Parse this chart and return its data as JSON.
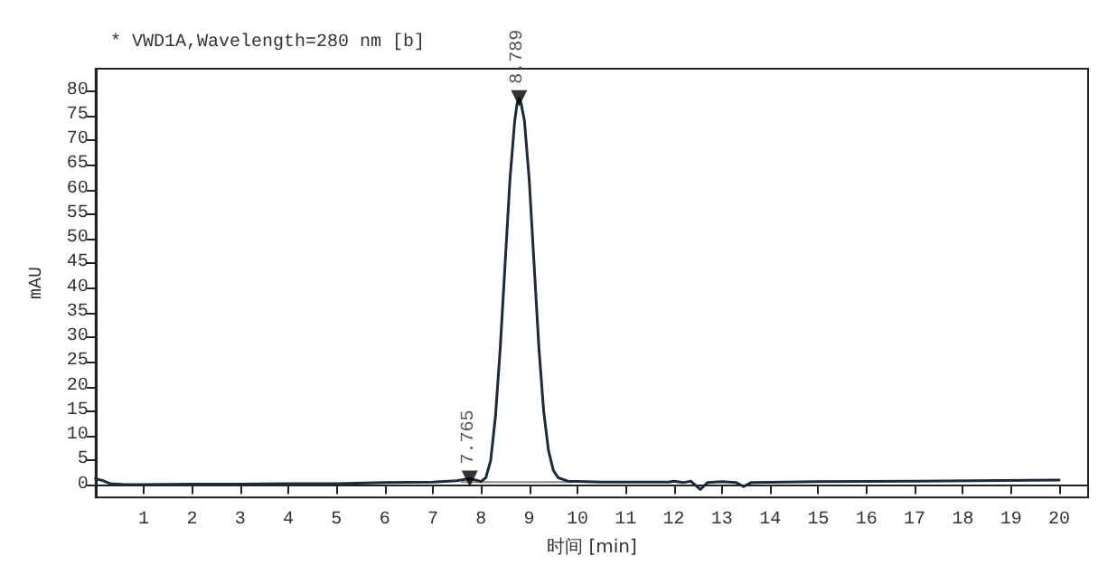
{
  "chart_data": {
    "type": "line",
    "title": "* VWD1A,Wavelength=280 nm [b]",
    "xlabel": "时间 [min]",
    "ylabel": "mAU",
    "xlim": [
      0,
      20.6
    ],
    "xticks": [
      1,
      2,
      3,
      4,
      5,
      6,
      7,
      8,
      9,
      10,
      11,
      12,
      13,
      14,
      15,
      16,
      17,
      18,
      19,
      20
    ],
    "ylim": [
      -2.5,
      84.5
    ],
    "yticks": [
      0,
      5,
      10,
      15,
      20,
      25,
      30,
      35,
      40,
      45,
      50,
      55,
      60,
      65,
      70,
      75,
      80
    ],
    "marker": "none",
    "line_style": "solid",
    "annotations": [
      {
        "text": "7.765",
        "x": 7.765,
        "y": 1.3
      },
      {
        "text": "8.789",
        "x": 8.789,
        "y": 78.5
      }
    ],
    "series": [
      {
        "color": "#1c2a3a",
        "x": [
          0,
          0.15,
          0.3,
          0.6,
          1,
          2,
          3,
          4,
          5,
          6,
          7,
          7.5,
          7.765,
          7.9,
          8.0,
          8.1,
          8.2,
          8.3,
          8.4,
          8.5,
          8.6,
          8.7,
          8.75,
          8.789,
          8.83,
          8.9,
          9.0,
          9.1,
          9.2,
          9.3,
          9.4,
          9.5,
          9.6,
          9.8,
          10.5,
          11.9,
          12.0,
          12.2,
          12.35,
          12.55,
          12.7,
          13.0,
          13.3,
          13.45,
          13.6,
          15,
          17,
          20
        ],
        "values": [
          1.3,
          0.9,
          0.3,
          0.1,
          0.1,
          0.2,
          0.2,
          0.3,
          0.3,
          0.5,
          0.6,
          0.9,
          1.3,
          1.0,
          0.7,
          1.5,
          5,
          14,
          28,
          45,
          62,
          74,
          77.5,
          78.5,
          77.5,
          74,
          62,
          45,
          28,
          15,
          7,
          3,
          1.5,
          0.8,
          0.6,
          0.6,
          0.8,
          0.5,
          0.8,
          -0.9,
          0.5,
          0.7,
          0.5,
          -0.3,
          0.5,
          0.7,
          0.8,
          1.0
        ]
      },
      {
        "color": "#888888",
        "x": [
          7.6,
          9.9
        ],
        "values": [
          0.6,
          0.6
        ]
      },
      {
        "type": "scatter",
        "marker": "triangle",
        "color": "#000000",
        "x": [
          7.765,
          8.789
        ],
        "values": [
          1.3,
          78.5
        ]
      }
    ]
  }
}
